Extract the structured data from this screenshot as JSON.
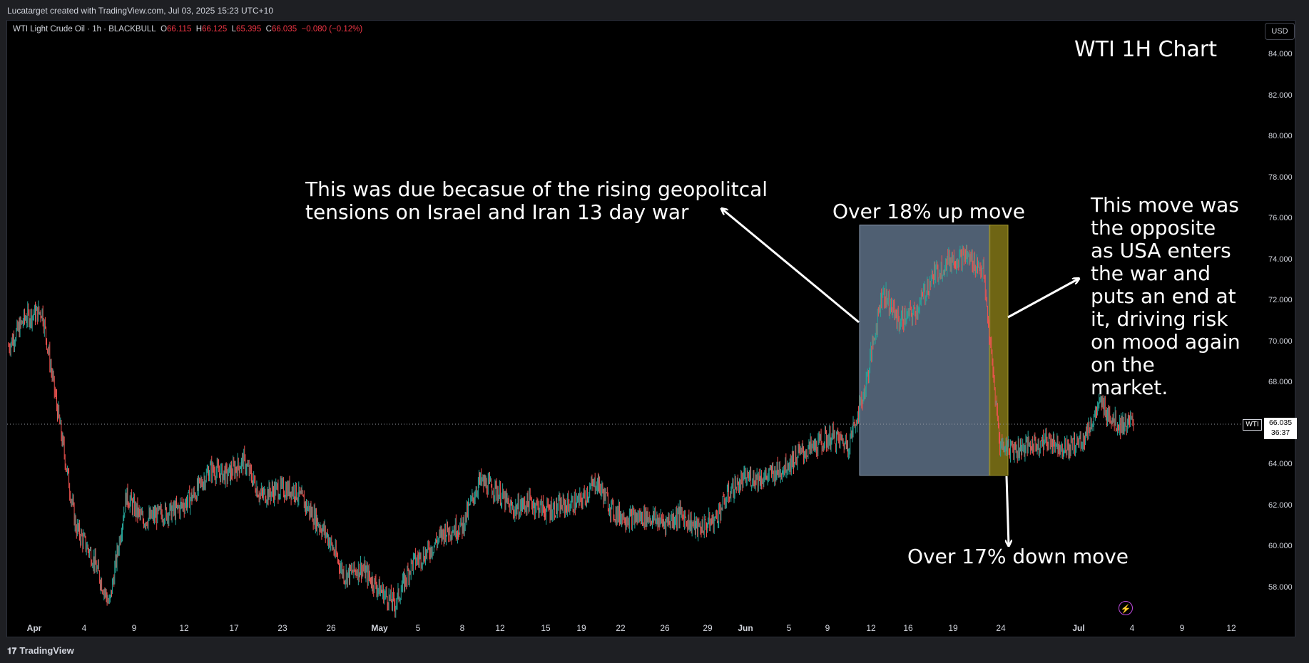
{
  "header": {
    "credit": "Lucatarget created with TradingView.com, Jul 03, 2025 15:23 UTC+10"
  },
  "symbol": {
    "name": "WTI Light Crude Oil · 1h · BLACKBULL",
    "open_label": "O",
    "open": "66.115",
    "high_label": "H",
    "high": "66.125",
    "low_label": "L",
    "low": "65.395",
    "close_label": "C",
    "close": "66.035",
    "change": "−0.080 (−0.12%)"
  },
  "currency": "USD",
  "last_price": {
    "symbol": "WTI",
    "value": "66.035",
    "countdown": "36:37"
  },
  "annotations": {
    "title": "WTI 1H Chart",
    "cause": [
      "This was due becasue of the rising geopolitcal",
      "tensions on Israel and Iran 13 day war"
    ],
    "up_move": "Over 18% up move",
    "down_move": "Over 17% down move",
    "opposite": [
      "This move was",
      "the opposite",
      "as USA enters",
      "the war and",
      "puts an end at",
      "it, driving risk",
      "on mood again",
      "on the",
      "market."
    ]
  },
  "footer": {
    "brand": "TradingView"
  },
  "colors": {
    "up": "#26a69a",
    "down": "#ef5350",
    "up_box": "#5d7086",
    "down_box": "#7b7016",
    "background": "#000000"
  },
  "chart_data": {
    "type": "line",
    "title": "WTI 1H Chart",
    "series": [
      {
        "name": "WTI",
        "x": [
          "Apr 1",
          "Apr 2",
          "Apr 3",
          "Apr 4",
          "Apr 7",
          "Apr 8",
          "Apr 9",
          "Apr 10",
          "Apr 11",
          "Apr 14",
          "Apr 15",
          "Apr 16",
          "Apr 17",
          "Apr 21",
          "Apr 22",
          "Apr 23",
          "Apr 24",
          "Apr 25",
          "Apr 28",
          "Apr 29",
          "Apr 30",
          "May 1",
          "May 2",
          "May 5",
          "May 6",
          "May 7",
          "May 8",
          "May 9",
          "May 12",
          "May 13",
          "May 14",
          "May 15",
          "May 16",
          "May 19",
          "May 20",
          "May 21",
          "May 22",
          "May 23",
          "May 26",
          "May 27",
          "May 28",
          "May 29",
          "May 30",
          "Jun 2",
          "Jun 3",
          "Jun 4",
          "Jun 5",
          "Jun 6",
          "Jun 9",
          "Jun 10",
          "Jun 11",
          "Jun 12",
          "Jun 13",
          "Jun 16",
          "Jun 17",
          "Jun 18",
          "Jun 19",
          "Jun 20",
          "Jun 23",
          "Jun 24",
          "Jun 25",
          "Jun 26",
          "Jun 27",
          "Jun 30",
          "Jul 1",
          "Jul 2",
          "Jul 3"
        ],
        "values": [
          69.8,
          71.2,
          71.5,
          66.2,
          61.0,
          59.5,
          57.2,
          62.5,
          61.3,
          61.6,
          61.8,
          62.5,
          63.8,
          63.5,
          64.2,
          62.5,
          62.8,
          62.8,
          61.7,
          60.5,
          58.6,
          59.0,
          58.0,
          57.2,
          59.2,
          59.8,
          60.8,
          61.0,
          63.2,
          62.8,
          61.8,
          62.2,
          61.8,
          62.0,
          62.2,
          63.2,
          61.7,
          61.4,
          61.5,
          61.2,
          61.6,
          60.9,
          61.3,
          62.8,
          63.4,
          63.4,
          63.8,
          64.5,
          64.9,
          65.4,
          65.0,
          67.8,
          72.5,
          71.0,
          71.5,
          73.2,
          74.0,
          74.2,
          73.5,
          65.0,
          64.8,
          65.0,
          65.2,
          64.8,
          65.3,
          67.0,
          66.0
        ]
      }
    ],
    "ylabel": "",
    "xlabel": "",
    "ylim": [
      56,
      85
    ],
    "y_ticks": [
      "84.000",
      "82.000",
      "80.000",
      "78.000",
      "76.000",
      "74.000",
      "72.000",
      "70.000",
      "68.000",
      "66.000",
      "64.000",
      "62.000",
      "60.000",
      "58.000"
    ],
    "x_ticks": [
      "Apr",
      "4",
      "9",
      "12",
      "17",
      "23",
      "26",
      "May",
      "5",
      "8",
      "12",
      "15",
      "19",
      "22",
      "26",
      "29",
      "Jun",
      "5",
      "9",
      "12",
      "16",
      "19",
      "24",
      "Jul",
      "4",
      "9",
      "12"
    ],
    "y_scale": "linear",
    "grid": false,
    "last_value": 66.035,
    "up_move_range": [
      63.5,
      75.7
    ],
    "down_move_range": [
      63.5,
      75.7
    ]
  }
}
